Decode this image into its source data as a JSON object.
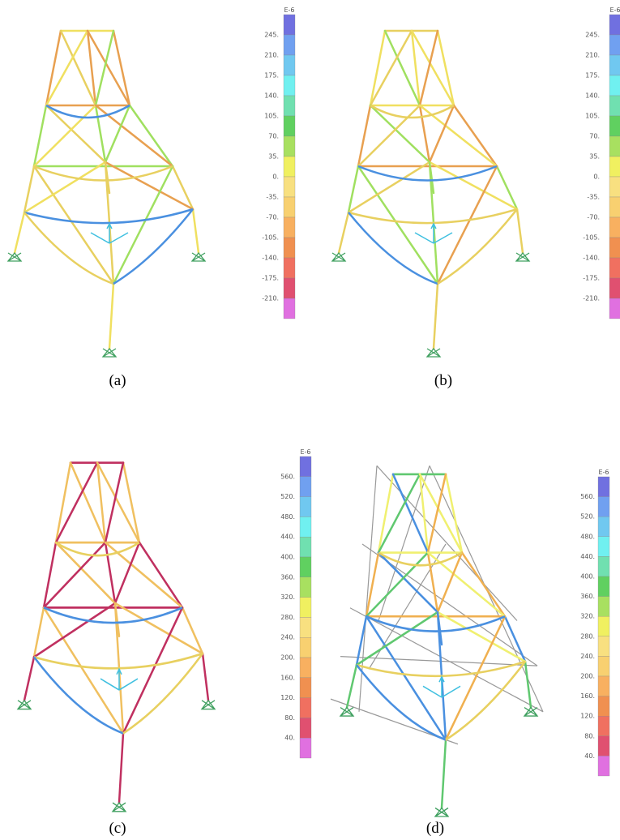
{
  "panels": [
    {
      "caption": "(a)",
      "scale_unit": "E-6",
      "scale_labels": [
        "245.",
        "210.",
        "175.",
        "140.",
        "105.",
        "70.",
        "35.",
        "0.",
        "-35.",
        "-70.",
        "-105.",
        "-140.",
        "-175.",
        "-210."
      ]
    },
    {
      "caption": "(b)",
      "scale_unit": "E-6",
      "scale_labels": [
        "245.",
        "210.",
        "175.",
        "140.",
        "105.",
        "70.",
        "35.",
        "0.",
        "-35.",
        "-70.",
        "-105.",
        "-140.",
        "-175.",
        "-210."
      ]
    },
    {
      "caption": "(c)",
      "scale_unit": "E-6",
      "scale_labels": [
        "560.",
        "520.",
        "480.",
        "440.",
        "400.",
        "360.",
        "320.",
        "280.",
        "240.",
        "200.",
        "160.",
        "120.",
        "80.",
        "40."
      ]
    },
    {
      "caption": "(d)",
      "scale_unit": "E-6",
      "scale_labels": [
        "560.",
        "520.",
        "480.",
        "440.",
        "400.",
        "360.",
        "320.",
        "280.",
        "240.",
        "200.",
        "160.",
        "120.",
        "80.",
        "40."
      ]
    }
  ]
}
